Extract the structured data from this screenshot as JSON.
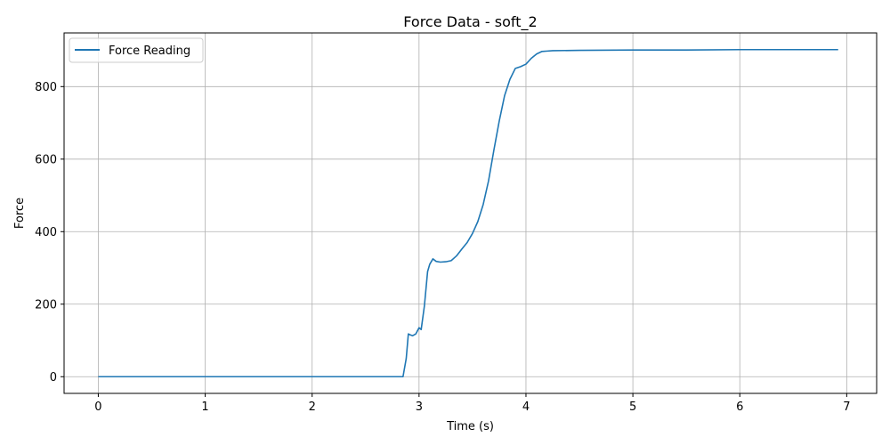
{
  "chart_data": {
    "type": "line",
    "title": "Force Data - soft_2",
    "xlabel": "Time (s)",
    "ylabel": "Force",
    "xlim": [
      -0.32,
      7.28
    ],
    "ylim": [
      -46,
      948
    ],
    "xticks": [
      0,
      1,
      2,
      3,
      4,
      5,
      6,
      7
    ],
    "yticks": [
      0,
      200,
      400,
      600,
      800
    ],
    "grid": true,
    "legend_position": "upper-left",
    "color": "#1f77b4",
    "series": [
      {
        "name": "Force Reading",
        "x": [
          0,
          2.85,
          2.88,
          2.9,
          2.92,
          2.94,
          2.97,
          3.0,
          3.02,
          3.05,
          3.08,
          3.1,
          3.13,
          3.16,
          3.2,
          3.25,
          3.3,
          3.35,
          3.4,
          3.45,
          3.5,
          3.55,
          3.6,
          3.65,
          3.7,
          3.75,
          3.8,
          3.85,
          3.9,
          3.95,
          4.0,
          4.05,
          4.1,
          4.15,
          4.2,
          4.25,
          4.5,
          5.0,
          5.5,
          6.0,
          6.5,
          6.92
        ],
        "y": [
          0,
          0,
          50,
          118,
          115,
          113,
          118,
          135,
          130,
          195,
          290,
          310,
          325,
          318,
          316,
          317,
          320,
          333,
          352,
          370,
          395,
          428,
          475,
          540,
          625,
          705,
          775,
          820,
          850,
          855,
          862,
          878,
          890,
          897,
          898,
          899,
          900,
          901,
          901,
          902,
          902,
          902
        ]
      }
    ]
  }
}
